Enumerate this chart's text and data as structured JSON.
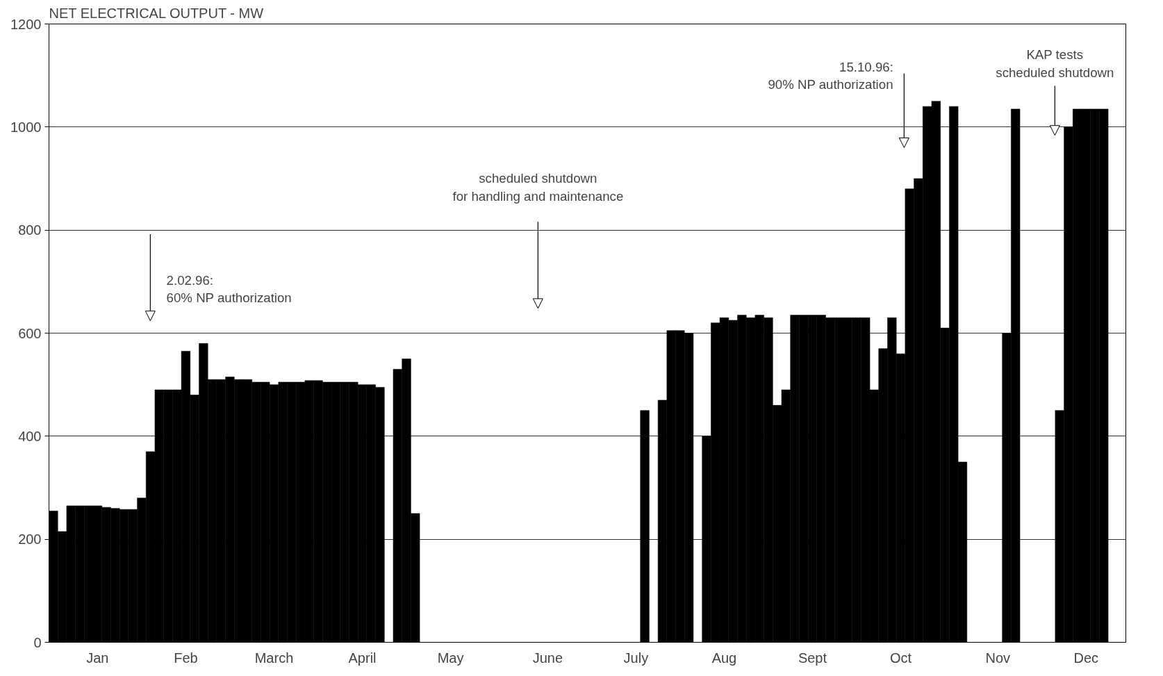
{
  "chart_data": {
    "type": "bar",
    "title": "NET ELECTRICAL OUTPUT - MW",
    "color": "#000000",
    "categories": [
      null,
      null,
      null,
      null,
      null,
      "Jan",
      null,
      null,
      null,
      null,
      null,
      null,
      null,
      null,
      null,
      "Feb",
      null,
      null,
      null,
      null,
      null,
      null,
      null,
      null,
      null,
      "March",
      null,
      null,
      null,
      null,
      null,
      null,
      null,
      null,
      null,
      "April",
      null,
      null,
      null,
      null,
      null,
      null,
      null,
      null,
      null,
      "May",
      null,
      null,
      null,
      null,
      null,
      null,
      null,
      null,
      null,
      null,
      "June",
      null,
      null,
      null,
      null,
      null,
      null,
      null,
      null,
      null,
      "July",
      null,
      null,
      null,
      null,
      null,
      null,
      null,
      null,
      null,
      "Aug",
      null,
      null,
      null,
      null,
      null,
      null,
      null,
      null,
      null,
      "Sept",
      null,
      null,
      null,
      null,
      null,
      null,
      null,
      null,
      null,
      "Oct",
      null,
      null,
      null,
      null,
      null,
      null,
      null,
      null,
      null,
      null,
      "Nov",
      null,
      null,
      null,
      null,
      null,
      null,
      null,
      null,
      null,
      "Dec",
      null,
      null,
      null,
      null
    ],
    "values": [
      255,
      215,
      265,
      265,
      265,
      265,
      262,
      260,
      258,
      258,
      280,
      370,
      490,
      490,
      490,
      565,
      480,
      580,
      510,
      510,
      515,
      510,
      510,
      505,
      505,
      500,
      505,
      505,
      505,
      508,
      508,
      505,
      505,
      505,
      505,
      500,
      500,
      495,
      0,
      530,
      550,
      250,
      0,
      0,
      0,
      0,
      0,
      0,
      0,
      0,
      0,
      0,
      0,
      0,
      0,
      0,
      0,
      0,
      0,
      0,
      0,
      0,
      0,
      0,
      0,
      0,
      0,
      450,
      0,
      470,
      605,
      605,
      600,
      0,
      400,
      620,
      630,
      625,
      635,
      630,
      635,
      630,
      460,
      490,
      635,
      635,
      635,
      635,
      630,
      630,
      630,
      630,
      630,
      490,
      570,
      630,
      560,
      880,
      900,
      1040,
      1050,
      610,
      1040,
      350,
      0,
      0,
      0,
      0,
      600,
      1035,
      0,
      0,
      0,
      0,
      450,
      1000,
      1035,
      1035,
      1035,
      1035,
      0,
      0
    ],
    "ylim": [
      0,
      1200
    ],
    "yticks": [
      0,
      200,
      400,
      600,
      800,
      1000,
      1200
    ],
    "grid": "y",
    "annotations": [
      "2.02.96:\n60% NP authorization",
      "scheduled shutdown\nfor handling and maintenance",
      "15.10.96:\n90% NP authorization",
      "KAP tests\nscheduled shutdown"
    ]
  }
}
